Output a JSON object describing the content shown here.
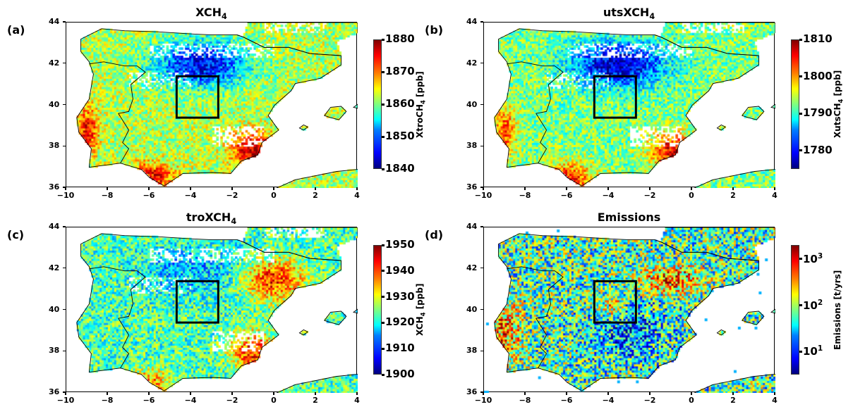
{
  "axes": {
    "x_ticks": [
      -10,
      -8,
      -6,
      -4,
      -2,
      0,
      2,
      4
    ],
    "y_ticks": [
      36,
      38,
      40,
      42,
      44
    ],
    "xlim": [
      -10,
      4
    ],
    "ylim": [
      36,
      44
    ]
  },
  "box_region": {
    "lon": [
      -4.7,
      -2.7
    ],
    "lat": [
      39.4,
      41.4
    ]
  },
  "panels": [
    {
      "label": "(a)",
      "title": "XCH",
      "title_sub": "4",
      "colorbar": {
        "scale": "linear",
        "range": [
          1840,
          1880
        ],
        "ticks": [
          1840,
          1850,
          1860,
          1870,
          1880
        ],
        "label": "XtroCH",
        "label_sub": "4",
        "label_suffix": " [ppb]"
      }
    },
    {
      "label": "(b)",
      "title": "utsXCH",
      "title_sub": "4",
      "colorbar": {
        "scale": "linear",
        "range": [
          1775,
          1810
        ],
        "ticks": [
          1780,
          1790,
          1800,
          1810
        ],
        "label": "XutsCH",
        "label_sub": "4",
        "label_suffix": " [ppb]"
      }
    },
    {
      "label": "(c)",
      "title": "troXCH",
      "title_sub": "4",
      "colorbar": {
        "scale": "linear",
        "range": [
          1900,
          1950
        ],
        "ticks": [
          1900,
          1910,
          1920,
          1930,
          1940,
          1950
        ],
        "label": "XCH",
        "label_sub": "4",
        "label_suffix": " [ppb]"
      }
    },
    {
      "label": "(d)",
      "title": "Emissions",
      "title_sub": "",
      "colorbar": {
        "scale": "log",
        "range": [
          3.2,
          2000
        ],
        "ticks": [
          10,
          100,
          1000
        ],
        "tick_labels": [
          "10",
          "10",
          "10"
        ],
        "tick_exps": [
          "1",
          "2",
          "3"
        ],
        "label": "Emissions [t/yrs]",
        "label_sub": "",
        "label_suffix": ""
      }
    }
  ]
}
